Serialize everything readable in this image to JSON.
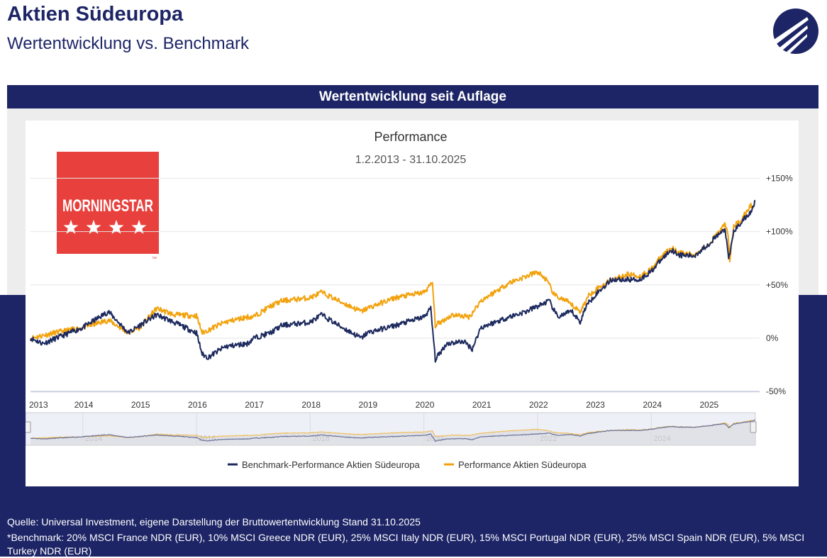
{
  "header": {
    "title": "Aktien Südeuropa",
    "subtitle": "Wertentwicklung vs. Benchmark"
  },
  "band_title": "Wertentwicklung seit Auflage",
  "morningstar": {
    "brand": "MORNINGSTAR",
    "stars": 4,
    "tm": "™",
    "color": "#e8403c"
  },
  "chart_data": {
    "type": "line",
    "title": "Performance",
    "subtitle": "1.2.2013 - 31.10.2025",
    "xlabel": "",
    "ylabel": "",
    "xlim": [
      2013.08,
      2025.83
    ],
    "ylim": [
      -50,
      150
    ],
    "yticks": [
      150,
      100,
      50,
      0,
      -50
    ],
    "ytick_labels": [
      "+150%",
      "+100%",
      "+50%",
      "0%",
      "-50%"
    ],
    "xtick_labels": [
      "2013",
      "2014",
      "2015",
      "2016",
      "2017",
      "2018",
      "2019",
      "2020",
      "2021",
      "2022",
      "2023",
      "2024",
      "2025"
    ],
    "xticks": [
      2013.08,
      2014,
      2015,
      2016,
      2017,
      2018,
      2019,
      2020,
      2021,
      2022,
      2023,
      2024,
      2025
    ],
    "navigator_labels": [
      "2014",
      "2016",
      "2018",
      "2020",
      "2022",
      "2024"
    ],
    "legend_position": "bottom-center",
    "series": [
      {
        "name": "Benchmark-Performance Aktien Südeuropa",
        "color": "#1d2a5e",
        "x": [
          2013.08,
          2013.3,
          2014.0,
          2014.45,
          2014.8,
          2015.0,
          2015.3,
          2015.6,
          2016.0,
          2016.1,
          2016.2,
          2016.5,
          2016.9,
          2017.0,
          2017.3,
          2017.5,
          2018.0,
          2018.2,
          2018.5,
          2018.9,
          2019.0,
          2019.5,
          2020.0,
          2020.12,
          2020.2,
          2020.4,
          2020.7,
          2020.85,
          2021.0,
          2021.5,
          2021.8,
          2022.0,
          2022.2,
          2022.35,
          2022.6,
          2022.75,
          2022.85,
          2023.0,
          2023.3,
          2023.6,
          2023.8,
          2024.0,
          2024.2,
          2024.35,
          2024.5,
          2024.75,
          2025.0,
          2025.2,
          2025.3,
          2025.36,
          2025.45,
          2025.6,
          2025.75,
          2025.83
        ],
        "y": [
          0,
          -5,
          10,
          25,
          5,
          12,
          22,
          15,
          5,
          -15,
          -18,
          -8,
          -5,
          0,
          5,
          12,
          15,
          22,
          12,
          0,
          5,
          12,
          20,
          28,
          -20,
          -5,
          -3,
          -10,
          10,
          20,
          25,
          30,
          35,
          20,
          25,
          15,
          30,
          40,
          55,
          55,
          55,
          63,
          75,
          83,
          78,
          77,
          88,
          98,
          102,
          73,
          100,
          110,
          118,
          130
        ]
      },
      {
        "name": "Performance Aktien Südeuropa",
        "color": "#f2a20c",
        "x": [
          2013.08,
          2013.5,
          2014.0,
          2014.45,
          2014.8,
          2015.0,
          2015.3,
          2015.6,
          2016.0,
          2016.1,
          2016.5,
          2016.9,
          2017.0,
          2017.3,
          2017.5,
          2018.0,
          2018.2,
          2018.5,
          2018.9,
          2019.0,
          2019.5,
          2020.0,
          2020.15,
          2020.2,
          2020.5,
          2020.8,
          2021.0,
          2021.5,
          2022.0,
          2022.15,
          2022.3,
          2022.5,
          2022.75,
          2022.9,
          2023.0,
          2023.3,
          2023.6,
          2023.8,
          2024.0,
          2024.2,
          2024.35,
          2024.5,
          2024.75,
          2025.0,
          2025.2,
          2025.3,
          2025.35,
          2025.38,
          2025.45,
          2025.6,
          2025.75,
          2025.78,
          2025.83
        ],
        "y": [
          0,
          5,
          10,
          17,
          5,
          10,
          28,
          22,
          21,
          5,
          15,
          20,
          20,
          30,
          35,
          38,
          43,
          35,
          25,
          28,
          38,
          43,
          52,
          12,
          22,
          20,
          35,
          52,
          62,
          55,
          40,
          35,
          25,
          40,
          45,
          55,
          60,
          58,
          65,
          78,
          85,
          80,
          78,
          88,
          100,
          108,
          95,
          73,
          105,
          112,
          125,
          122,
          130
        ]
      }
    ]
  },
  "footer": {
    "source": "Quelle: Universal Investment, eigene Darstellung der Bruttowertentwicklung Stand  31.10.2025",
    "benchmark": "*Benchmark: 20% MSCI France NDR (EUR), 10% MSCI Greece NDR (EUR), 25% MSCI Italy NDR (EUR), 15% MSCI Portugal NDR (EUR), 25% MSCI Spain NDR (EUR), 5% MSCI Turkey NDR (EUR)"
  }
}
